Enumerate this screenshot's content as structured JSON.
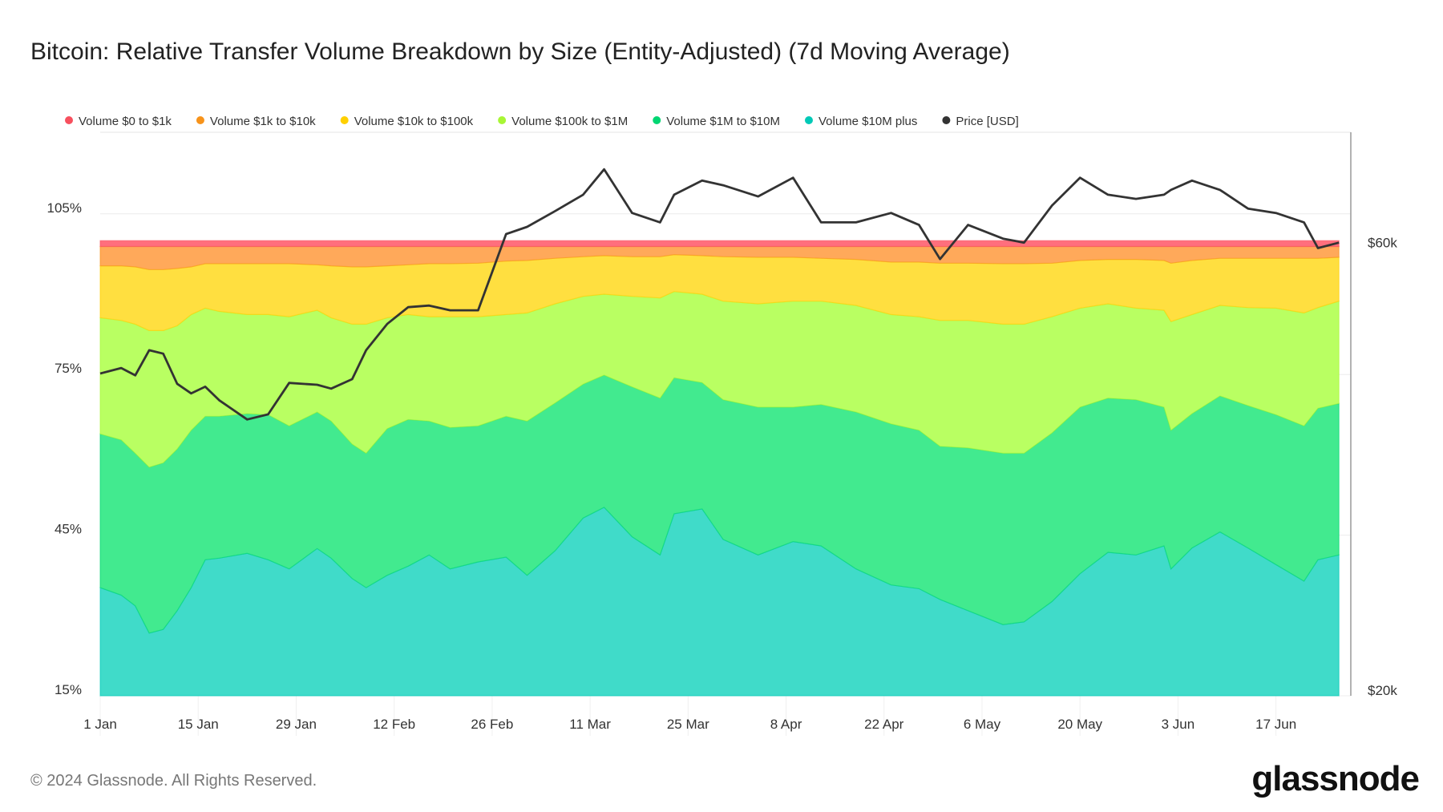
{
  "chart_data": {
    "type": "area",
    "stacked": "percent",
    "title": "Bitcoin: Relative Transfer Volume Breakdown by Size (Entity-Adjusted) (7d Moving Average)",
    "legend_position": "top-left",
    "grid": true,
    "y_left": {
      "ticks": [
        "15%",
        "45%",
        "75%",
        "105%"
      ],
      "tick_values": [
        15,
        45,
        75,
        105
      ],
      "range": [
        15,
        115
      ]
    },
    "y_right": {
      "scale": "log",
      "ticks": [
        "$20k",
        "$60k"
      ],
      "tick_values": [
        20000,
        60000
      ]
    },
    "x_ticks": [
      {
        "date": "2024-01-01",
        "label": "1 Jan"
      },
      {
        "date": "2024-01-15",
        "label": "15 Jan"
      },
      {
        "date": "2024-01-29",
        "label": "29 Jan"
      },
      {
        "date": "2024-02-12",
        "label": "12 Feb"
      },
      {
        "date": "2024-02-26",
        "label": "26 Feb"
      },
      {
        "date": "2024-03-11",
        "label": "11 Mar"
      },
      {
        "date": "2024-03-25",
        "label": "25 Mar"
      },
      {
        "date": "2024-04-08",
        "label": "8 Apr"
      },
      {
        "date": "2024-04-22",
        "label": "22 Apr"
      },
      {
        "date": "2024-05-06",
        "label": "6 May"
      },
      {
        "date": "2024-05-20",
        "label": "20 May"
      },
      {
        "date": "2024-06-03",
        "label": "3 Jun"
      },
      {
        "date": "2024-06-17",
        "label": "17 Jun"
      }
    ],
    "x": [
      "2024-01-01",
      "2024-01-04",
      "2024-01-06",
      "2024-01-08",
      "2024-01-10",
      "2024-01-12",
      "2024-01-14",
      "2024-01-16",
      "2024-01-18",
      "2024-01-22",
      "2024-01-25",
      "2024-01-28",
      "2024-02-01",
      "2024-02-03",
      "2024-02-06",
      "2024-02-08",
      "2024-02-11",
      "2024-02-14",
      "2024-02-17",
      "2024-02-20",
      "2024-02-24",
      "2024-02-28",
      "2024-03-02",
      "2024-03-06",
      "2024-03-10",
      "2024-03-13",
      "2024-03-17",
      "2024-03-21",
      "2024-03-23",
      "2024-03-27",
      "2024-03-30",
      "2024-04-04",
      "2024-04-09",
      "2024-04-13",
      "2024-04-18",
      "2024-04-23",
      "2024-04-27",
      "2024-04-30",
      "2024-05-04",
      "2024-05-09",
      "2024-05-12",
      "2024-05-16",
      "2024-05-20",
      "2024-05-24",
      "2024-05-28",
      "2024-06-01",
      "2024-06-02",
      "2024-06-05",
      "2024-06-09",
      "2024-06-13",
      "2024-06-17",
      "2024-06-21",
      "2024-06-23",
      "2024-06-26"
    ],
    "series": [
      {
        "name": "Volume $10M plus",
        "color": "#40dbc9",
        "legend_color": "#00c9b7",
        "values": [
          35.2,
          33.8,
          31.8,
          26.7,
          27.4,
          30.9,
          35.2,
          40.4,
          40.7,
          41.6,
          40.4,
          38.7,
          42.5,
          40.7,
          36.9,
          35.2,
          37.5,
          39.2,
          41.3,
          38.7,
          40.0,
          40.9,
          37.5,
          42.1,
          48.2,
          50.2,
          44.7,
          41.3,
          49.0,
          49.9,
          44.2,
          41.3,
          43.8,
          43.0,
          38.7,
          35.7,
          35.0,
          33.0,
          30.9,
          28.3,
          28.8,
          32.6,
          37.8,
          41.8,
          41.3,
          43.0,
          38.7,
          42.6,
          45.6,
          42.6,
          39.5,
          36.4,
          40.4,
          41.3
        ]
      },
      {
        "name": "Volume $1M to $10M",
        "color": "#42ea8f",
        "legend_color": "#00d672",
        "values": [
          28.7,
          29.0,
          28.5,
          31.0,
          31.1,
          30.2,
          29.4,
          26.8,
          26.5,
          26.1,
          27.1,
          26.7,
          25.5,
          25.6,
          25.1,
          25.1,
          27.4,
          27.4,
          25.0,
          26.4,
          25.4,
          26.3,
          28.8,
          27.6,
          25.0,
          24.7,
          28.0,
          29.3,
          25.4,
          23.6,
          26.1,
          27.6,
          25.1,
          26.4,
          29.3,
          30.1,
          29.6,
          28.6,
          30.4,
          32.0,
          31.5,
          31.5,
          31.1,
          28.8,
          29.0,
          25.9,
          25.9,
          25.1,
          25.4,
          26.6,
          28.0,
          29.0,
          28.3,
          28.3
        ]
      },
      {
        "name": "Volume $100k to $1M",
        "color": "#b9ff62",
        "legend_color": "#a8f635",
        "values": [
          21.7,
          22.3,
          24.1,
          25.5,
          24.7,
          23.0,
          21.6,
          20.2,
          19.6,
          18.5,
          18.7,
          20.4,
          19.0,
          19.3,
          22.4,
          24.1,
          20.7,
          19.6,
          19.5,
          20.7,
          20.4,
          19.0,
          20.2,
          18.5,
          16.4,
          15.1,
          16.9,
          18.7,
          16.1,
          16.5,
          18.4,
          19.3,
          19.8,
          19.3,
          19.9,
          20.4,
          21.2,
          23.5,
          23.8,
          24.1,
          24.1,
          21.7,
          18.5,
          17.6,
          17.1,
          18.1,
          20.3,
          18.5,
          16.9,
          18.3,
          19.9,
          21.1,
          18.8,
          19.1
        ]
      },
      {
        "name": "Volume $10k to $100k",
        "color": "#ffdf40",
        "legend_color": "#ffd000",
        "values": [
          9.7,
          10.2,
          10.7,
          11.4,
          11.4,
          10.7,
          8.9,
          8.3,
          8.9,
          9.5,
          9.5,
          9.9,
          8.5,
          9.7,
          10.7,
          10.7,
          9.7,
          9.3,
          9.9,
          9.9,
          10.0,
          10.0,
          9.8,
          8.5,
          7.4,
          7.2,
          7.4,
          7.7,
          6.9,
          7.2,
          8.3,
          8.7,
          8.2,
          8.0,
          8.6,
          9.8,
          10.2,
          10.7,
          10.7,
          11.3,
          11.3,
          10.0,
          8.9,
          8.3,
          9.1,
          9.3,
          10.9,
          10.1,
          8.8,
          9.2,
          9.3,
          10.2,
          9.2,
          8.2
        ]
      },
      {
        "name": "Volume $1k to $10k",
        "color": "#ffa95a",
        "legend_color": "#f7931a",
        "values": [
          3.6,
          3.6,
          3.8,
          4.3,
          4.3,
          4.1,
          3.8,
          3.2,
          3.2,
          3.2,
          3.2,
          3.2,
          3.4,
          3.6,
          3.8,
          3.8,
          3.6,
          3.4,
          3.2,
          3.2,
          3.1,
          2.7,
          2.6,
          2.2,
          1.9,
          1.7,
          1.9,
          1.9,
          1.5,
          1.7,
          1.9,
          2.0,
          2.0,
          2.2,
          2.4,
          2.9,
          2.9,
          3.1,
          3.1,
          3.2,
          3.2,
          3.1,
          2.6,
          2.4,
          2.4,
          2.6,
          3.1,
          2.6,
          2.2,
          2.2,
          2.2,
          2.2,
          2.2,
          2.0
        ]
      },
      {
        "name": "Volume $0 to $1k",
        "color": "#ff6f7d",
        "legend_color": "#f7505e",
        "values": [
          1.1,
          1.1,
          1.1,
          1.1,
          1.1,
          1.1,
          1.1,
          1.1,
          1.1,
          1.1,
          1.1,
          1.1,
          1.1,
          1.1,
          1.1,
          1.1,
          1.1,
          1.1,
          1.1,
          1.1,
          1.1,
          1.1,
          1.1,
          1.1,
          1.1,
          1.1,
          1.1,
          1.1,
          1.1,
          1.1,
          1.1,
          1.1,
          1.1,
          1.1,
          1.1,
          1.1,
          1.1,
          1.1,
          1.1,
          1.1,
          1.1,
          1.1,
          1.1,
          1.1,
          1.1,
          1.1,
          1.1,
          1.1,
          1.1,
          1.1,
          1.1,
          1.1,
          1.1,
          1.1
        ]
      }
    ],
    "price": {
      "name": "Price [USD]",
      "color": "#333333",
      "values": [
        44100,
        44700,
        43900,
        46700,
        46300,
        43000,
        42000,
        42700,
        41300,
        39400,
        39900,
        43100,
        42900,
        42500,
        43500,
        46700,
        49800,
        51900,
        52100,
        51500,
        51500,
        62100,
        63200,
        65700,
        68400,
        72800,
        65400,
        63900,
        68400,
        70800,
        70000,
        68100,
        71300,
        63900,
        63900,
        65400,
        63500,
        58400,
        63500,
        61400,
        60800,
        66600,
        71300,
        68400,
        67700,
        68400,
        69200,
        70800,
        69200,
        66100,
        65400,
        63900,
        60000,
        60800
      ]
    }
  },
  "legend": [
    {
      "label": "Volume $0 to $1k",
      "color": "#f7505e"
    },
    {
      "label": "Volume $1k to $10k",
      "color": "#f7931a"
    },
    {
      "label": "Volume $10k to $100k",
      "color": "#ffd000"
    },
    {
      "label": "Volume $100k to $1M",
      "color": "#a8f635"
    },
    {
      "label": "Volume $1M to $10M",
      "color": "#00d672"
    },
    {
      "label": "Volume $10M plus",
      "color": "#00c9b7"
    },
    {
      "label": "Price [USD]",
      "color": "#333333"
    }
  ],
  "footer": {
    "copyright": "© 2024 Glassnode. All Rights Reserved.",
    "logo": "glassnode"
  }
}
